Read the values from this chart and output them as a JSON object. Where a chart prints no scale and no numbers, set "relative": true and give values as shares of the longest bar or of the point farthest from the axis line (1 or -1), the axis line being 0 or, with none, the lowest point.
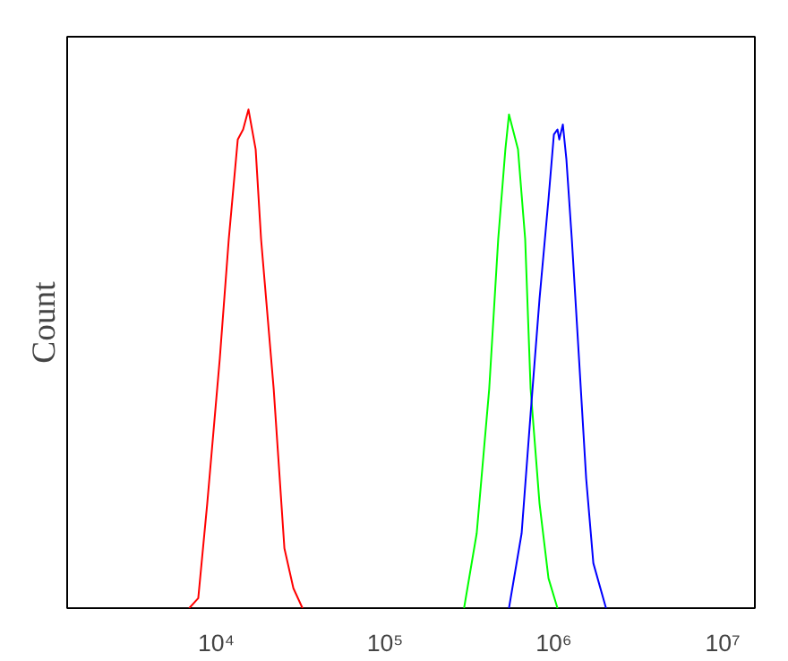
{
  "chart_data": {
    "type": "line",
    "ylabel": "Count",
    "relative": true,
    "log": "x",
    "grid": false,
    "xlim": [
      1310,
      15500000
    ],
    "xticks": [
      {
        "value": 10000,
        "label": "10⁴"
      },
      {
        "value": 100000,
        "label": "10⁵"
      },
      {
        "value": 1000000,
        "label": "10⁶"
      },
      {
        "value": 10000000,
        "label": "10⁷"
      }
    ],
    "series": [
      {
        "color": "#ff0000",
        "x": [
          6920,
          7830,
          8850,
          10500,
          11870,
          13420,
          14440,
          15530,
          17130,
          18440,
          21900,
          25350,
          28650,
          32430
        ],
        "values": [
          0,
          0.02,
          0.21,
          0.5,
          0.74,
          0.94,
          0.96,
          1.0,
          0.92,
          0.74,
          0.44,
          0.12,
          0.04,
          0
        ]
      },
      {
        "color": "#00ff00",
        "x": [
          293800,
          349000,
          414000,
          468000,
          516000,
          542000,
          613000,
          676000,
          728000,
          822000,
          929000,
          1050000
        ],
        "values": [
          0,
          0.15,
          0.44,
          0.74,
          0.92,
          0.99,
          0.92,
          0.74,
          0.44,
          0.21,
          0.06,
          0
        ]
      },
      {
        "color": "#0000ff",
        "x": [
          542000,
          644000,
          728000,
          822000,
          929000,
          1000000,
          1050000,
          1076000,
          1130000,
          1186000,
          1277000,
          1409000,
          1553000,
          1713000,
          2036000
        ],
        "values": [
          0,
          0.15,
          0.39,
          0.62,
          0.82,
          0.95,
          0.96,
          0.94,
          0.97,
          0.9,
          0.74,
          0.5,
          0.26,
          0.09,
          0
        ]
      }
    ]
  }
}
